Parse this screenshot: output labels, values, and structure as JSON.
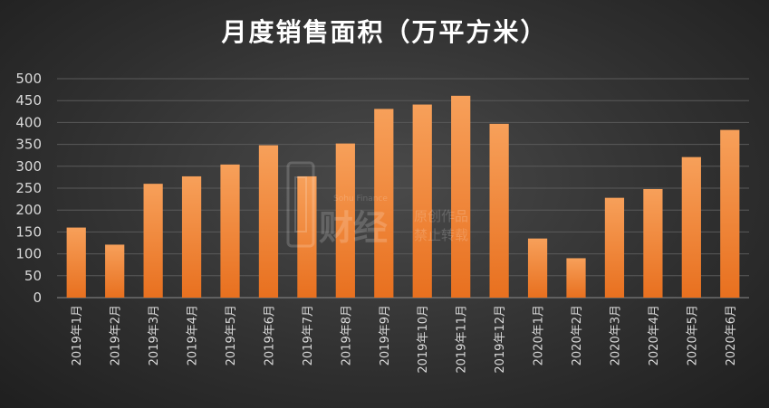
{
  "chart_data": {
    "type": "bar",
    "title": "月度销售面积（万平方米）",
    "categories": [
      "2019年1月",
      "2019年2月",
      "2019年3月",
      "2019年4月",
      "2019年5月",
      "2019年6月",
      "2019年7月",
      "2019年8月",
      "2019年9月",
      "2019年10月",
      "2019年11月",
      "2019年12月",
      "2020年1月",
      "2020年2月",
      "2020年3月",
      "2020年4月",
      "2020年5月",
      "2020年6月"
    ],
    "values": [
      160,
      121,
      260,
      277,
      304,
      348,
      277,
      352,
      431,
      441,
      461,
      397,
      135,
      90,
      228,
      248,
      321,
      383
    ],
    "xlabel": "",
    "ylabel": "",
    "ylim": [
      0,
      500
    ],
    "yticks": [
      0,
      50,
      100,
      150,
      200,
      250,
      300,
      350,
      400,
      450,
      500
    ],
    "grid": true,
    "legend": "none",
    "bar_color_top": "#f7a05a",
    "bar_color_bottom": "#e8701f",
    "watermark": {
      "line1": "原创作品",
      "line2": "禁止转载",
      "brand": "财经",
      "small": "Sohu Finance"
    }
  }
}
